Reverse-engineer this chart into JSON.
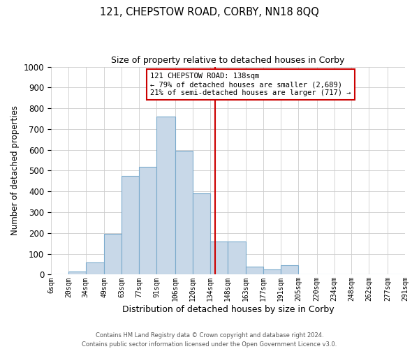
{
  "title": "121, CHEPSTOW ROAD, CORBY, NN18 8QQ",
  "subtitle": "Size of property relative to detached houses in Corby",
  "xlabel": "Distribution of detached houses by size in Corby",
  "ylabel": "Number of detached properties",
  "bar_color": "#c8d8e8",
  "bar_edge_color": "#7aaacc",
  "grid_color": "#cccccc",
  "background_color": "#ffffff",
  "vline_x": 138,
  "vline_color": "#cc0000",
  "annotation_title": "121 CHEPSTOW ROAD: 138sqm",
  "annotation_line1": "← 79% of detached houses are smaller (2,689)",
  "annotation_line2": "21% of semi-detached houses are larger (717) →",
  "annotation_box_color": "#ffffff",
  "annotation_box_edge": "#cc0000",
  "footer1": "Contains HM Land Registry data © Crown copyright and database right 2024.",
  "footer2": "Contains public sector information licensed under the Open Government Licence v3.0.",
  "bin_edges": [
    6,
    20,
    34,
    49,
    63,
    77,
    91,
    106,
    120,
    134,
    148,
    163,
    177,
    191,
    205,
    220,
    234,
    248,
    262,
    277,
    291
  ],
  "bin_labels": [
    "6sqm",
    "20sqm",
    "34sqm",
    "49sqm",
    "63sqm",
    "77sqm",
    "91sqm",
    "106sqm",
    "120sqm",
    "134sqm",
    "148sqm",
    "163sqm",
    "177sqm",
    "191sqm",
    "205sqm",
    "220sqm",
    "234sqm",
    "248sqm",
    "262sqm",
    "277sqm",
    "291sqm"
  ],
  "counts": [
    0,
    15,
    60,
    195,
    475,
    520,
    760,
    595,
    390,
    160,
    160,
    40,
    25,
    45,
    0,
    0,
    0,
    0,
    0,
    0
  ],
  "ylim": [
    0,
    1000
  ],
  "yticks": [
    0,
    100,
    200,
    300,
    400,
    500,
    600,
    700,
    800,
    900,
    1000
  ]
}
